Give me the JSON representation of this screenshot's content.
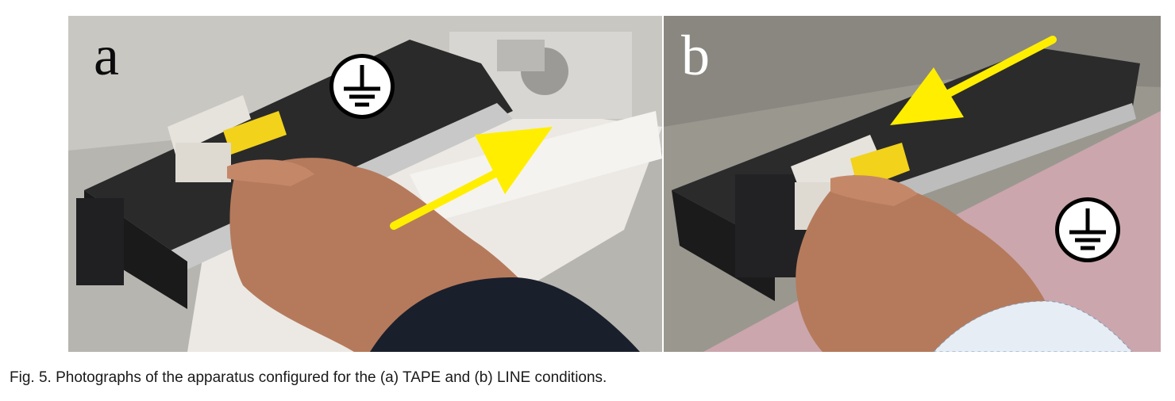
{
  "figure": {
    "caption": "Fig. 5. Photographs of the apparatus configured for the (a) TAPE and (b) LINE conditions.",
    "panels": [
      {
        "label": "a",
        "icon": "ground-symbol-icon",
        "arrow_color": "#ffee00"
      },
      {
        "label": "b",
        "icon": "ground-symbol-icon",
        "arrow_color": "#ffee00"
      }
    ]
  }
}
